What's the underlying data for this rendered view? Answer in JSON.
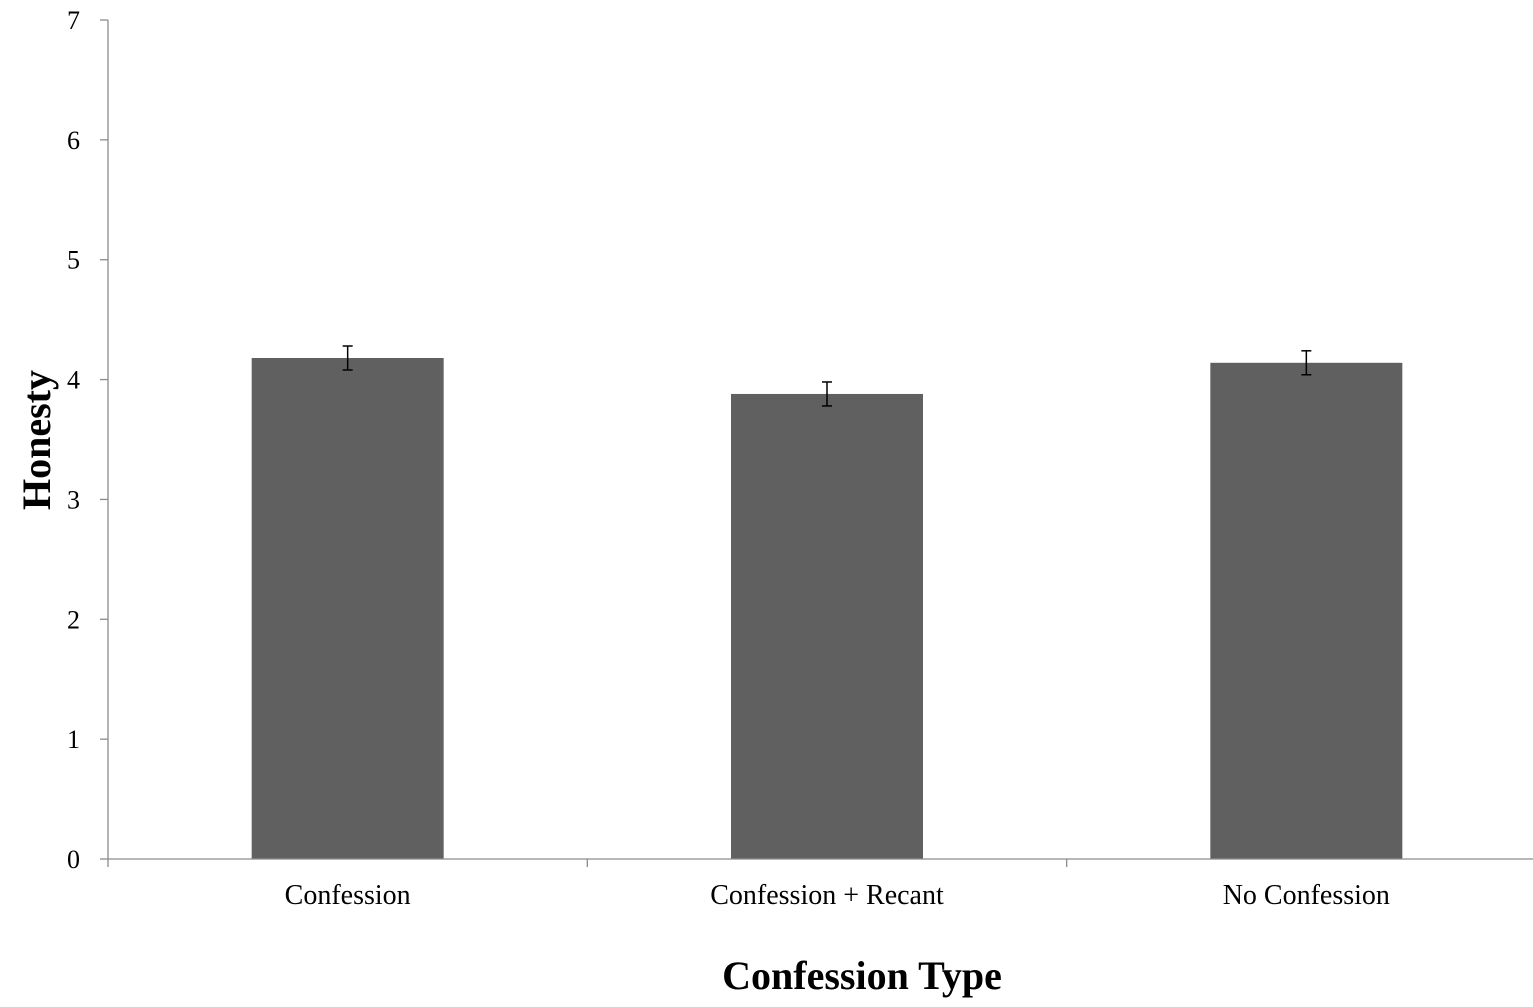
{
  "chart_data": {
    "type": "bar",
    "title": "",
    "xlabel": "Confession Type",
    "ylabel": "Honesty",
    "categories": [
      "Confession",
      "Confession + Recant",
      "No Confession"
    ],
    "values": [
      4.18,
      3.88,
      4.14
    ],
    "error": [
      0.1,
      0.1,
      0.1
    ],
    "ylim": [
      0,
      7
    ],
    "yticks": [
      "0",
      "1",
      "2",
      "3",
      "4",
      "5",
      "6",
      "7"
    ],
    "grid": false,
    "legend": "none",
    "colors": {
      "bar": "#606060",
      "axis": "#8c8c8c",
      "error_bar": "#000000"
    }
  }
}
